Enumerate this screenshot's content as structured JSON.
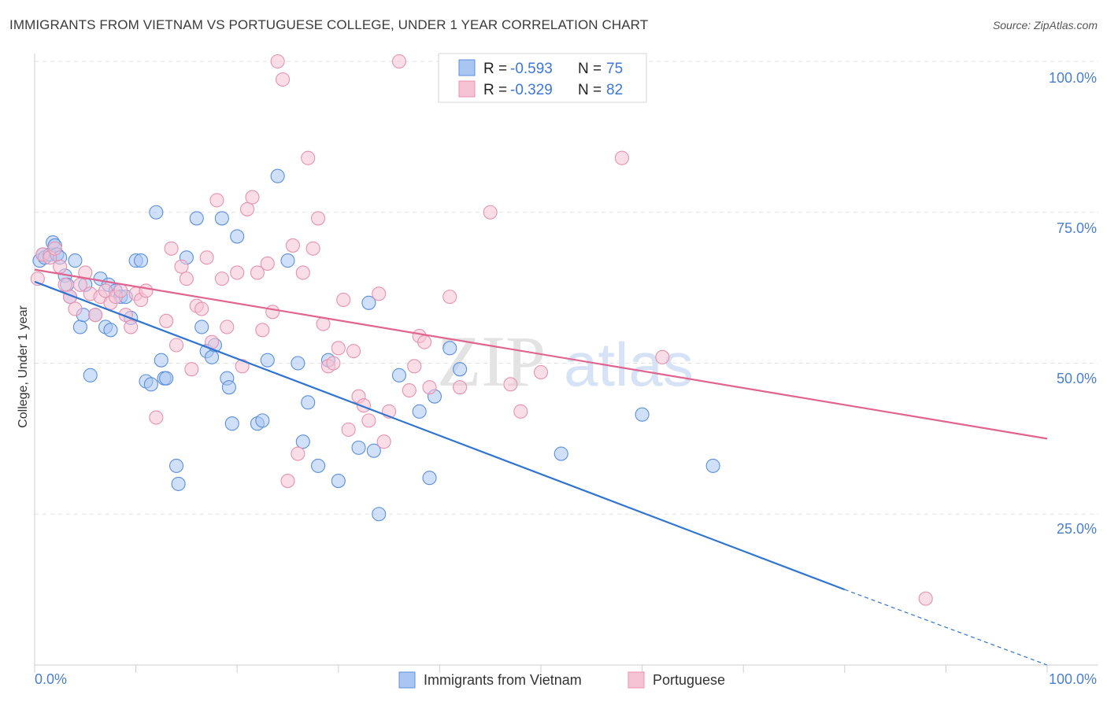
{
  "title": "IMMIGRANTS FROM VIETNAM VS PORTUGUESE COLLEGE, UNDER 1 YEAR CORRELATION CHART",
  "source": "Source: ZipAtlas.com",
  "watermark": {
    "zip": "ZIP",
    "atlas": "atlas"
  },
  "legend": [
    {
      "r_label": "R =",
      "r_value": "-0.593",
      "n_label": "N =",
      "n_value": "75"
    },
    {
      "r_label": "R =",
      "r_value": "-0.329",
      "n_label": "N =",
      "n_value": "82"
    }
  ],
  "colors": {
    "vietnam": "#5b8fe0",
    "vietnam_fill": "#a9c6f2",
    "vietnam_line": "#2f74d0",
    "portuguese": "#e891b0",
    "portuguese_fill": "#f6c3d4",
    "portuguese_line": "#e0648f",
    "accent_text": "#3c78d8"
  },
  "chart_data": {
    "type": "scatter",
    "xlabel": "",
    "ylabel": "College, Under 1 year",
    "xlim": [
      0,
      100
    ],
    "ylim": [
      0,
      100
    ],
    "x_tick_labels": [
      "0.0%",
      "100.0%"
    ],
    "y_ticks": [
      25,
      50,
      75,
      100
    ],
    "y_tick_labels": [
      "25.0%",
      "50.0%",
      "75.0%",
      "100.0%"
    ],
    "grid": true,
    "legend_position": "top-center",
    "series": [
      {
        "name": "Immigrants from Vietnam",
        "r": -0.593,
        "n": 75,
        "trend": {
          "x0": 0,
          "y0": 63.5,
          "x1": 80,
          "y1": 12.5,
          "dashed_to_x": 100,
          "dashed_to_y": 0
        },
        "points": [
          [
            0.5,
            67
          ],
          [
            0.8,
            68
          ],
          [
            1,
            67.5
          ],
          [
            1.5,
            68
          ],
          [
            1.8,
            70
          ],
          [
            2,
            69.5
          ],
          [
            2.2,
            68
          ],
          [
            2.5,
            67.5
          ],
          [
            3,
            64.5
          ],
          [
            3.2,
            63
          ],
          [
            3.5,
            61
          ],
          [
            4,
            67
          ],
          [
            4.5,
            56
          ],
          [
            4.8,
            58
          ],
          [
            5,
            63
          ],
          [
            5.5,
            48
          ],
          [
            6,
            58
          ],
          [
            6.5,
            64
          ],
          [
            7,
            56
          ],
          [
            7.3,
            63
          ],
          [
            7.5,
            55.5
          ],
          [
            8,
            62
          ],
          [
            8.5,
            61
          ],
          [
            9,
            61
          ],
          [
            9.5,
            57.5
          ],
          [
            10,
            67
          ],
          [
            10.5,
            67
          ],
          [
            11,
            47
          ],
          [
            11.5,
            46.5
          ],
          [
            12,
            75
          ],
          [
            12.5,
            50.5
          ],
          [
            12.8,
            47.5
          ],
          [
            13,
            47.5
          ],
          [
            14,
            33
          ],
          [
            14.2,
            30
          ],
          [
            15,
            67.5
          ],
          [
            16,
            74
          ],
          [
            16.5,
            56
          ],
          [
            17,
            52
          ],
          [
            17.5,
            51
          ],
          [
            17.8,
            53
          ],
          [
            18.5,
            74
          ],
          [
            19,
            47.5
          ],
          [
            19.2,
            46
          ],
          [
            19.5,
            40
          ],
          [
            20,
            71
          ],
          [
            22,
            40
          ],
          [
            22.5,
            40.5
          ],
          [
            23,
            50.5
          ],
          [
            24,
            81
          ],
          [
            25,
            67
          ],
          [
            26,
            50
          ],
          [
            26.5,
            37
          ],
          [
            27,
            43.5
          ],
          [
            28,
            33
          ],
          [
            29,
            50.5
          ],
          [
            30,
            30.5
          ],
          [
            32,
            36
          ],
          [
            33,
            60
          ],
          [
            33.5,
            35.5
          ],
          [
            34,
            25
          ],
          [
            36,
            48
          ],
          [
            38,
            42
          ],
          [
            39,
            31
          ],
          [
            39.5,
            44.5
          ],
          [
            41,
            52.5
          ],
          [
            42,
            49
          ],
          [
            52,
            35
          ],
          [
            60,
            41.5
          ],
          [
            67,
            33
          ]
        ]
      },
      {
        "name": "Portuguese",
        "r": -0.329,
        "n": 82,
        "trend": {
          "x0": 0,
          "y0": 65.5,
          "x1": 100,
          "y1": 37.5
        },
        "points": [
          [
            0.3,
            64
          ],
          [
            0.8,
            68
          ],
          [
            1.5,
            67.5
          ],
          [
            2,
            69
          ],
          [
            2.5,
            66
          ],
          [
            3,
            63
          ],
          [
            3.5,
            61
          ],
          [
            4,
            59
          ],
          [
            4.5,
            63
          ],
          [
            5,
            65
          ],
          [
            5.5,
            61.5
          ],
          [
            6,
            58
          ],
          [
            6.5,
            61
          ],
          [
            7,
            62
          ],
          [
            7.5,
            60
          ],
          [
            8,
            61
          ],
          [
            8.5,
            62
          ],
          [
            9,
            58
          ],
          [
            9.5,
            56
          ],
          [
            10,
            61.5
          ],
          [
            10.5,
            60.5
          ],
          [
            11,
            62
          ],
          [
            12,
            41
          ],
          [
            13,
            57
          ],
          [
            13.5,
            69
          ],
          [
            14,
            53
          ],
          [
            14.5,
            66
          ],
          [
            15,
            64
          ],
          [
            15.5,
            49
          ],
          [
            16,
            59.5
          ],
          [
            16.5,
            59
          ],
          [
            17,
            67.5
          ],
          [
            17.5,
            53.5
          ],
          [
            18,
            77
          ],
          [
            18.5,
            64
          ],
          [
            19,
            56
          ],
          [
            20,
            65
          ],
          [
            20.5,
            49.5
          ],
          [
            21,
            75.5
          ],
          [
            21.5,
            77.5
          ],
          [
            22,
            65
          ],
          [
            22.5,
            55.5
          ],
          [
            23,
            66.5
          ],
          [
            23.5,
            58.5
          ],
          [
            24,
            100
          ],
          [
            24.5,
            97
          ],
          [
            25,
            30.5
          ],
          [
            25.5,
            69.5
          ],
          [
            26,
            35
          ],
          [
            26.5,
            65
          ],
          [
            27,
            84
          ],
          [
            27.5,
            69
          ],
          [
            28,
            74
          ],
          [
            28.5,
            56.5
          ],
          [
            29,
            49.5
          ],
          [
            29.5,
            50
          ],
          [
            30,
            52.5
          ],
          [
            30.5,
            60.5
          ],
          [
            31,
            39
          ],
          [
            31.5,
            52
          ],
          [
            32,
            44.5
          ],
          [
            32.5,
            43
          ],
          [
            33,
            40.5
          ],
          [
            34,
            61.5
          ],
          [
            34.5,
            37
          ],
          [
            35,
            42
          ],
          [
            36,
            100
          ],
          [
            37,
            45.5
          ],
          [
            37.5,
            49.5
          ],
          [
            38,
            54.5
          ],
          [
            38.5,
            53.5
          ],
          [
            39,
            46
          ],
          [
            41,
            61
          ],
          [
            42,
            46
          ],
          [
            45,
            75
          ],
          [
            47,
            46.5
          ],
          [
            48,
            42
          ],
          [
            50,
            48.5
          ],
          [
            58,
            84
          ],
          [
            62,
            51
          ],
          [
            88,
            11
          ]
        ]
      }
    ]
  },
  "bottom_legend": [
    "Immigrants from Vietnam",
    "Portuguese"
  ]
}
